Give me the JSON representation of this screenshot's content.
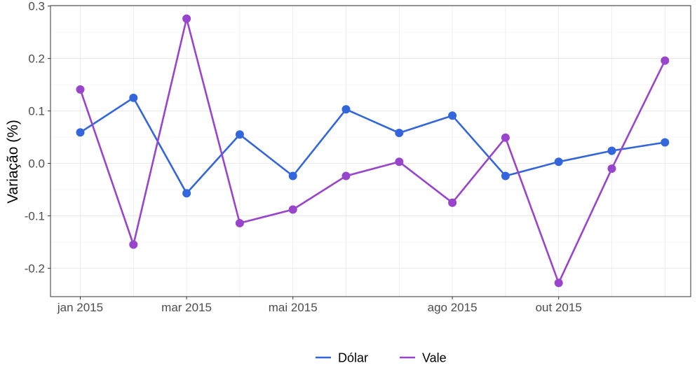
{
  "chart_data": {
    "type": "line",
    "ylabel": "Variação (%)",
    "xlabel": "",
    "title": "",
    "ylim": [
      -0.255,
      0.3
    ],
    "yticks": [
      -0.2,
      -0.1,
      0.0,
      0.1,
      0.2,
      0.3
    ],
    "ytick_labels": [
      "-0.2",
      "-0.1",
      "0.0",
      "0.1",
      "0.2",
      "0.3"
    ],
    "x": [
      "2015-01",
      "2015-02",
      "2015-03",
      "2015-04",
      "2015-05",
      "2015-06",
      "2015-07",
      "2015-08",
      "2015-09",
      "2015-10",
      "2015-11",
      "2015-12"
    ],
    "xticks": [
      {
        "x": "2015-01",
        "label": "jan 2015"
      },
      {
        "x": "2015-03",
        "label": "mar 2015"
      },
      {
        "x": "2015-05",
        "label": "mai 2015"
      },
      {
        "x": "2015-08",
        "label": "ago 2015"
      },
      {
        "x": "2015-10",
        "label": "out 2015"
      }
    ],
    "series": [
      {
        "name": "Dólar",
        "color": "#3366dd",
        "values": [
          0.059,
          0.125,
          -0.057,
          0.055,
          -0.024,
          0.103,
          0.058,
          0.091,
          -0.024,
          0.003,
          0.024,
          0.04
        ]
      },
      {
        "name": "Vale",
        "color": "#9944cc",
        "values": [
          0.141,
          -0.155,
          0.276,
          -0.114,
          -0.088,
          -0.024,
          0.003,
          -0.075,
          0.049,
          -0.228,
          -0.01,
          0.196
        ]
      }
    ],
    "grid": true,
    "legend_position": "bottom"
  }
}
